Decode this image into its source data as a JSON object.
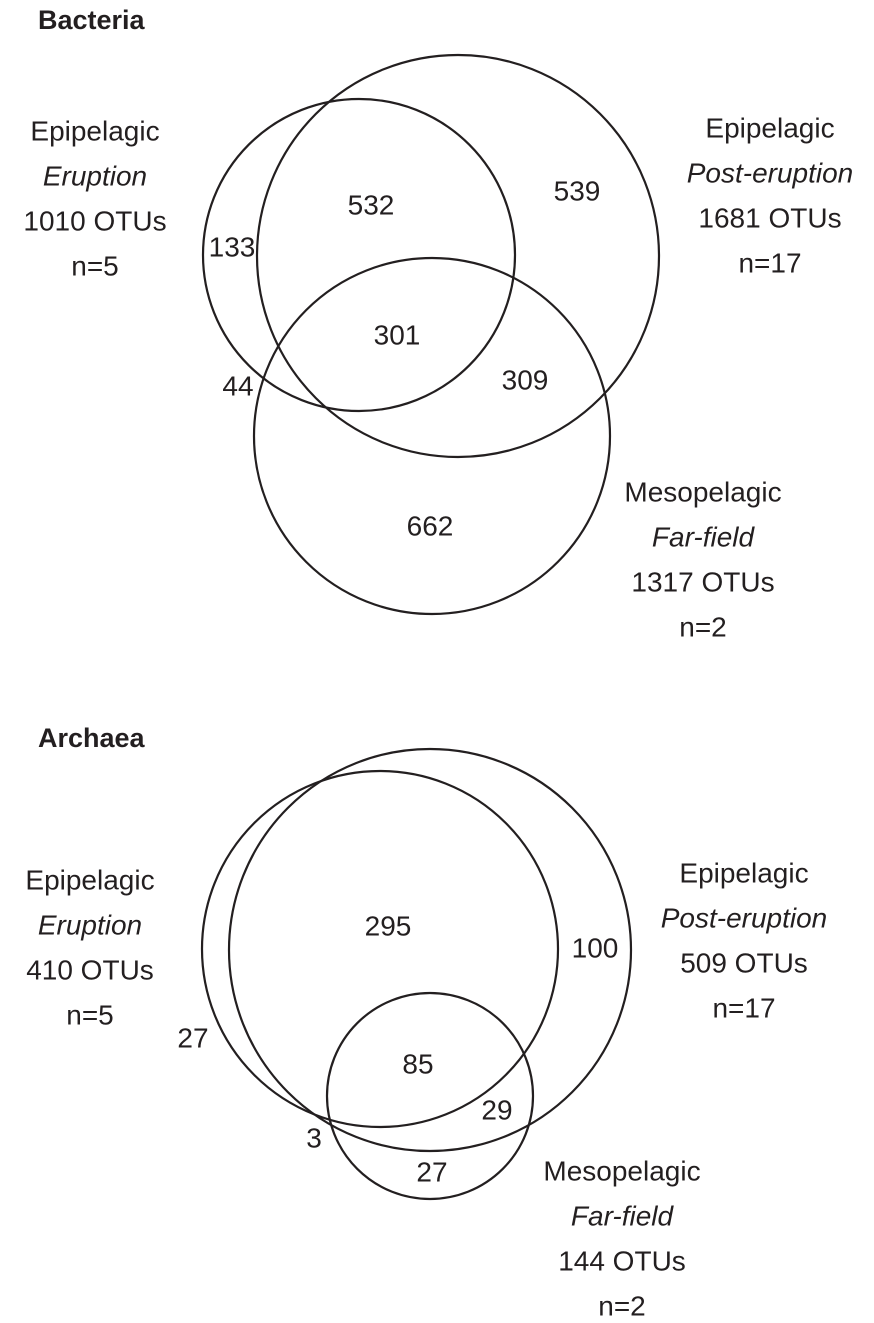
{
  "panels": [
    {
      "title": "Bacteria",
      "sets": [
        {
          "lines": [
            "Epipelagic",
            "Eruption",
            "1010 OTUs",
            "n=5"
          ]
        },
        {
          "lines": [
            "Epipelagic",
            "Post-eruption",
            "1681 OTUs",
            "n=17"
          ]
        },
        {
          "lines": [
            "Mesopelagic",
            "Far-field",
            "1317 OTUs",
            "n=2"
          ]
        }
      ],
      "regions": [
        133,
        532,
        539,
        301,
        44,
        309,
        662
      ]
    },
    {
      "title": "Archaea",
      "sets": [
        {
          "lines": [
            "Epipelagic",
            "Eruption",
            "410 OTUs",
            "n=5"
          ]
        },
        {
          "lines": [
            "Epipelagic",
            "Post-eruption",
            "509 OTUs",
            "n=17"
          ]
        },
        {
          "lines": [
            "Mesopelagic",
            "Far-field",
            "144 OTUs",
            "n=2"
          ]
        }
      ],
      "regions": [
        295,
        100,
        27,
        85,
        29,
        3,
        27
      ]
    }
  ]
}
